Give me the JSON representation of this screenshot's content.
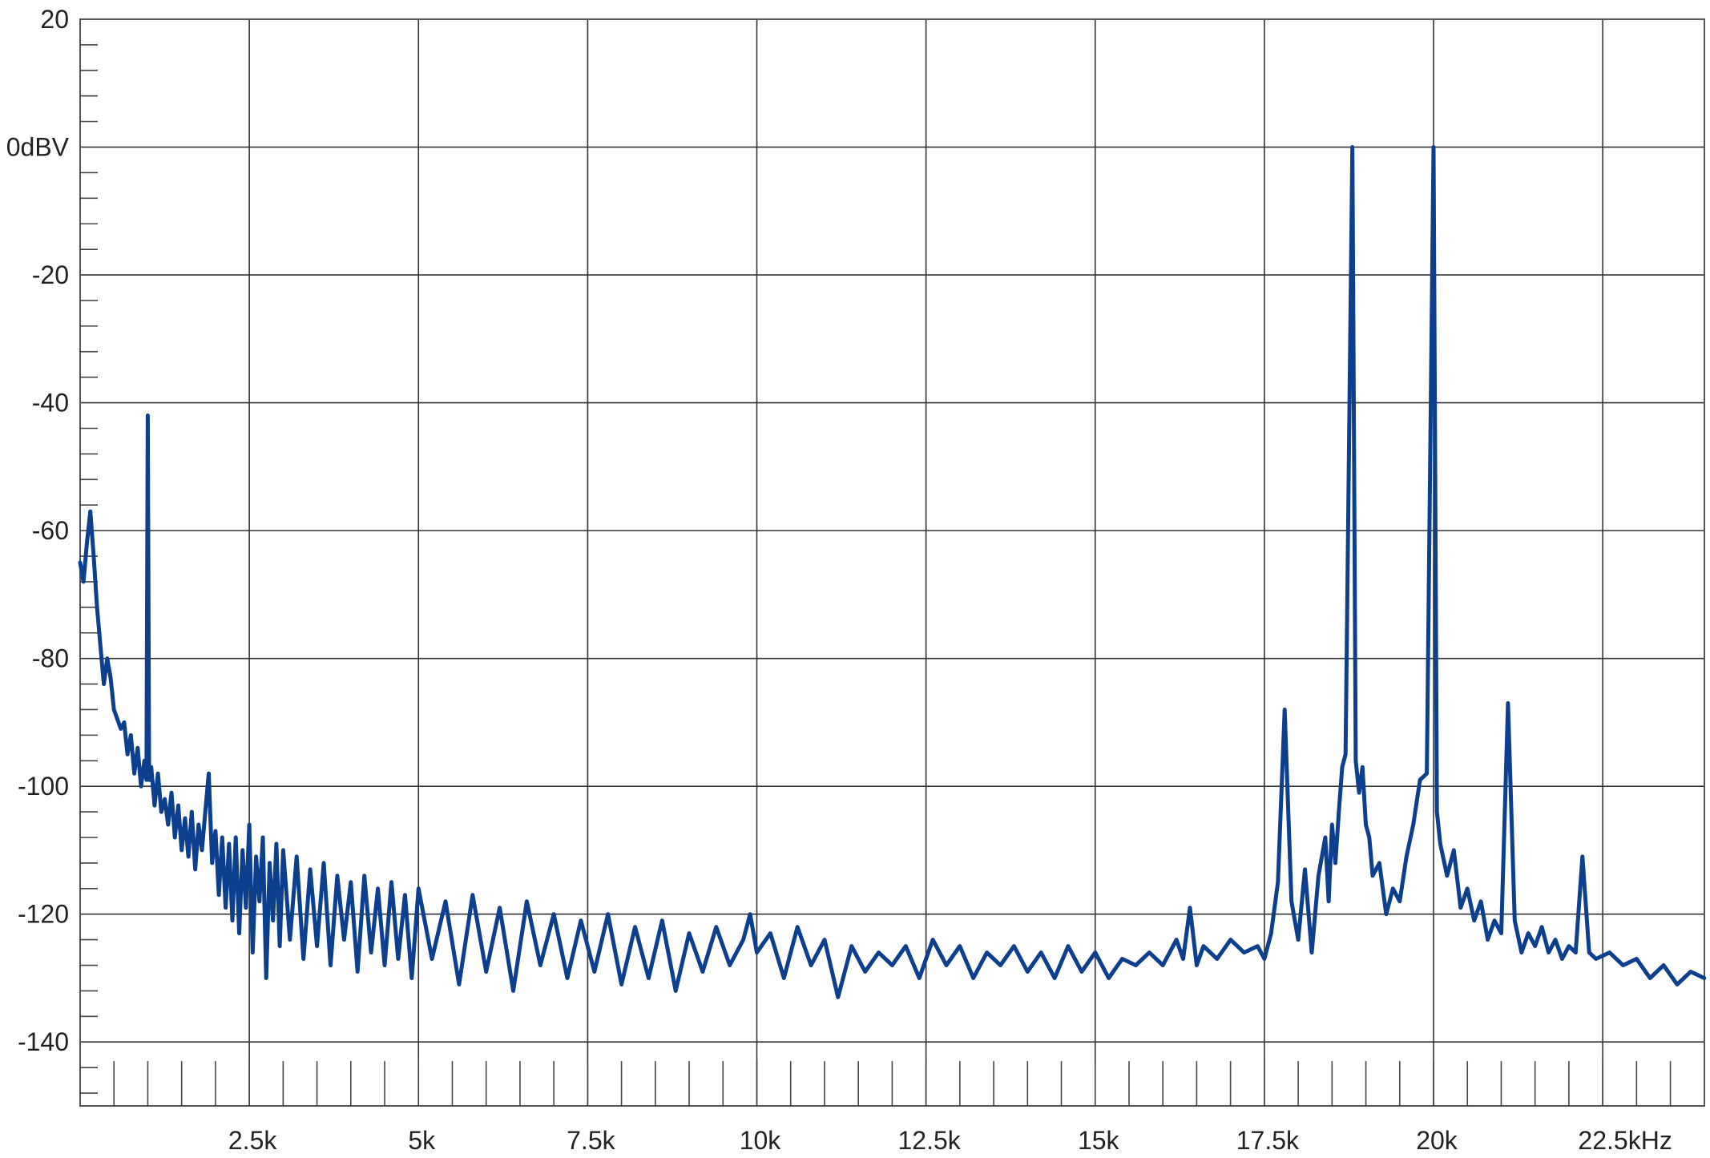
{
  "chart_data": {
    "type": "line",
    "title": "",
    "xlabel": "",
    "ylabel": "",
    "xlim": [
      0,
      24000
    ],
    "ylim": [
      -150,
      20
    ],
    "grid": true,
    "y_ticks": [
      {
        "value": 20,
        "label": "20"
      },
      {
        "value": 0,
        "label": "0dBV"
      },
      {
        "value": -20,
        "label": "-20"
      },
      {
        "value": -40,
        "label": "-40"
      },
      {
        "value": -60,
        "label": "-60"
      },
      {
        "value": -80,
        "label": "-80"
      },
      {
        "value": -100,
        "label": "-100"
      },
      {
        "value": -120,
        "label": "-120"
      },
      {
        "value": -140,
        "label": "-140"
      }
    ],
    "x_ticks": [
      {
        "value": 2500,
        "label": "2.5k"
      },
      {
        "value": 5000,
        "label": "5k"
      },
      {
        "value": 7500,
        "label": "7.5k"
      },
      {
        "value": 10000,
        "label": "10k"
      },
      {
        "value": 12500,
        "label": "12.5k"
      },
      {
        "value": 15000,
        "label": "15k"
      },
      {
        "value": 17500,
        "label": "17.5k"
      },
      {
        "value": 20000,
        "label": "20k"
      },
      {
        "value": 22500,
        "label": "22.5kHz"
      }
    ],
    "series": [
      {
        "color": "#0d3f8f",
        "points": [
          [
            0,
            -65
          ],
          [
            50,
            -68
          ],
          [
            100,
            -62
          ],
          [
            150,
            -57
          ],
          [
            200,
            -64
          ],
          [
            250,
            -72
          ],
          [
            300,
            -78
          ],
          [
            350,
            -84
          ],
          [
            400,
            -80
          ],
          [
            450,
            -83
          ],
          [
            500,
            -88
          ],
          [
            600,
            -91
          ],
          [
            650,
            -90
          ],
          [
            700,
            -95
          ],
          [
            750,
            -92
          ],
          [
            800,
            -98
          ],
          [
            850,
            -94
          ],
          [
            900,
            -100
          ],
          [
            950,
            -96
          ],
          [
            980,
            -99
          ],
          [
            1000,
            -42
          ],
          [
            1020,
            -99
          ],
          [
            1050,
            -97
          ],
          [
            1100,
            -103
          ],
          [
            1150,
            -98
          ],
          [
            1200,
            -104
          ],
          [
            1250,
            -102
          ],
          [
            1300,
            -106
          ],
          [
            1350,
            -101
          ],
          [
            1400,
            -108
          ],
          [
            1450,
            -103
          ],
          [
            1500,
            -110
          ],
          [
            1550,
            -105
          ],
          [
            1600,
            -111
          ],
          [
            1650,
            -104
          ],
          [
            1700,
            -113
          ],
          [
            1750,
            -106
          ],
          [
            1800,
            -110
          ],
          [
            1850,
            -104
          ],
          [
            1900,
            -98
          ],
          [
            1950,
            -112
          ],
          [
            2000,
            -107
          ],
          [
            2050,
            -117
          ],
          [
            2100,
            -108
          ],
          [
            2150,
            -119
          ],
          [
            2200,
            -109
          ],
          [
            2250,
            -121
          ],
          [
            2300,
            -108
          ],
          [
            2350,
            -123
          ],
          [
            2400,
            -110
          ],
          [
            2450,
            -119
          ],
          [
            2500,
            -106
          ],
          [
            2550,
            -126
          ],
          [
            2600,
            -111
          ],
          [
            2650,
            -118
          ],
          [
            2700,
            -108
          ],
          [
            2750,
            -130
          ],
          [
            2800,
            -112
          ],
          [
            2850,
            -121
          ],
          [
            2900,
            -109
          ],
          [
            2950,
            -125
          ],
          [
            3000,
            -110
          ],
          [
            3100,
            -124
          ],
          [
            3200,
            -111
          ],
          [
            3300,
            -127
          ],
          [
            3400,
            -113
          ],
          [
            3500,
            -125
          ],
          [
            3600,
            -112
          ],
          [
            3700,
            -128
          ],
          [
            3800,
            -114
          ],
          [
            3900,
            -124
          ],
          [
            4000,
            -115
          ],
          [
            4100,
            -129
          ],
          [
            4200,
            -114
          ],
          [
            4300,
            -126
          ],
          [
            4400,
            -116
          ],
          [
            4500,
            -128
          ],
          [
            4600,
            -115
          ],
          [
            4700,
            -127
          ],
          [
            4800,
            -117
          ],
          [
            4900,
            -130
          ],
          [
            5000,
            -116
          ],
          [
            5200,
            -127
          ],
          [
            5400,
            -118
          ],
          [
            5600,
            -131
          ],
          [
            5800,
            -117
          ],
          [
            6000,
            -129
          ],
          [
            6200,
            -119
          ],
          [
            6400,
            -132
          ],
          [
            6600,
            -118
          ],
          [
            6800,
            -128
          ],
          [
            7000,
            -120
          ],
          [
            7200,
            -130
          ],
          [
            7400,
            -121
          ],
          [
            7600,
            -129
          ],
          [
            7800,
            -120
          ],
          [
            8000,
            -131
          ],
          [
            8200,
            -122
          ],
          [
            8400,
            -130
          ],
          [
            8600,
            -121
          ],
          [
            8800,
            -132
          ],
          [
            9000,
            -123
          ],
          [
            9200,
            -129
          ],
          [
            9400,
            -122
          ],
          [
            9600,
            -128
          ],
          [
            9800,
            -124
          ],
          [
            9900,
            -120
          ],
          [
            10000,
            -126
          ],
          [
            10200,
            -123
          ],
          [
            10400,
            -130
          ],
          [
            10600,
            -122
          ],
          [
            10800,
            -128
          ],
          [
            11000,
            -124
          ],
          [
            11200,
            -133
          ],
          [
            11400,
            -125
          ],
          [
            11600,
            -129
          ],
          [
            11800,
            -126
          ],
          [
            12000,
            -128
          ],
          [
            12200,
            -125
          ],
          [
            12400,
            -130
          ],
          [
            12600,
            -124
          ],
          [
            12800,
            -128
          ],
          [
            13000,
            -125
          ],
          [
            13200,
            -130
          ],
          [
            13400,
            -126
          ],
          [
            13600,
            -128
          ],
          [
            13800,
            -125
          ],
          [
            14000,
            -129
          ],
          [
            14200,
            -126
          ],
          [
            14400,
            -130
          ],
          [
            14600,
            -125
          ],
          [
            14800,
            -129
          ],
          [
            15000,
            -126
          ],
          [
            15200,
            -130
          ],
          [
            15400,
            -127
          ],
          [
            15600,
            -128
          ],
          [
            15800,
            -126
          ],
          [
            16000,
            -128
          ],
          [
            16200,
            -124
          ],
          [
            16300,
            -127
          ],
          [
            16400,
            -119
          ],
          [
            16500,
            -128
          ],
          [
            16600,
            -125
          ],
          [
            16800,
            -127
          ],
          [
            17000,
            -124
          ],
          [
            17200,
            -126
          ],
          [
            17400,
            -125
          ],
          [
            17500,
            -127
          ],
          [
            17600,
            -123
          ],
          [
            17700,
            -115
          ],
          [
            17800,
            -88
          ],
          [
            17900,
            -118
          ],
          [
            18000,
            -124
          ],
          [
            18100,
            -113
          ],
          [
            18200,
            -126
          ],
          [
            18300,
            -114
          ],
          [
            18400,
            -108
          ],
          [
            18450,
            -118
          ],
          [
            18500,
            -106
          ],
          [
            18550,
            -112
          ],
          [
            18600,
            -104
          ],
          [
            18650,
            -97
          ],
          [
            18700,
            -95
          ],
          [
            18800,
            0
          ],
          [
            18850,
            -96
          ],
          [
            18900,
            -101
          ],
          [
            18950,
            -97
          ],
          [
            19000,
            -106
          ],
          [
            19050,
            -108
          ],
          [
            19100,
            -114
          ],
          [
            19200,
            -112
          ],
          [
            19300,
            -120
          ],
          [
            19400,
            -116
          ],
          [
            19500,
            -118
          ],
          [
            19600,
            -111
          ],
          [
            19700,
            -106
          ],
          [
            19800,
            -99
          ],
          [
            19900,
            -98
          ],
          [
            20000,
            0
          ],
          [
            20050,
            -104
          ],
          [
            20100,
            -109
          ],
          [
            20200,
            -114
          ],
          [
            20300,
            -110
          ],
          [
            20400,
            -119
          ],
          [
            20500,
            -116
          ],
          [
            20600,
            -121
          ],
          [
            20700,
            -118
          ],
          [
            20800,
            -124
          ],
          [
            20900,
            -121
          ],
          [
            21000,
            -123
          ],
          [
            21100,
            -87
          ],
          [
            21200,
            -121
          ],
          [
            21300,
            -126
          ],
          [
            21400,
            -123
          ],
          [
            21500,
            -125
          ],
          [
            21600,
            -122
          ],
          [
            21700,
            -126
          ],
          [
            21800,
            -124
          ],
          [
            21900,
            -127
          ],
          [
            22000,
            -125
          ],
          [
            22100,
            -126
          ],
          [
            22200,
            -111
          ],
          [
            22300,
            -126
          ],
          [
            22400,
            -127
          ],
          [
            22600,
            -126
          ],
          [
            22800,
            -128
          ],
          [
            23000,
            -127
          ],
          [
            23200,
            -130
          ],
          [
            23400,
            -128
          ],
          [
            23600,
            -131
          ],
          [
            23800,
            -129
          ],
          [
            24000,
            -130
          ]
        ]
      }
    ]
  }
}
